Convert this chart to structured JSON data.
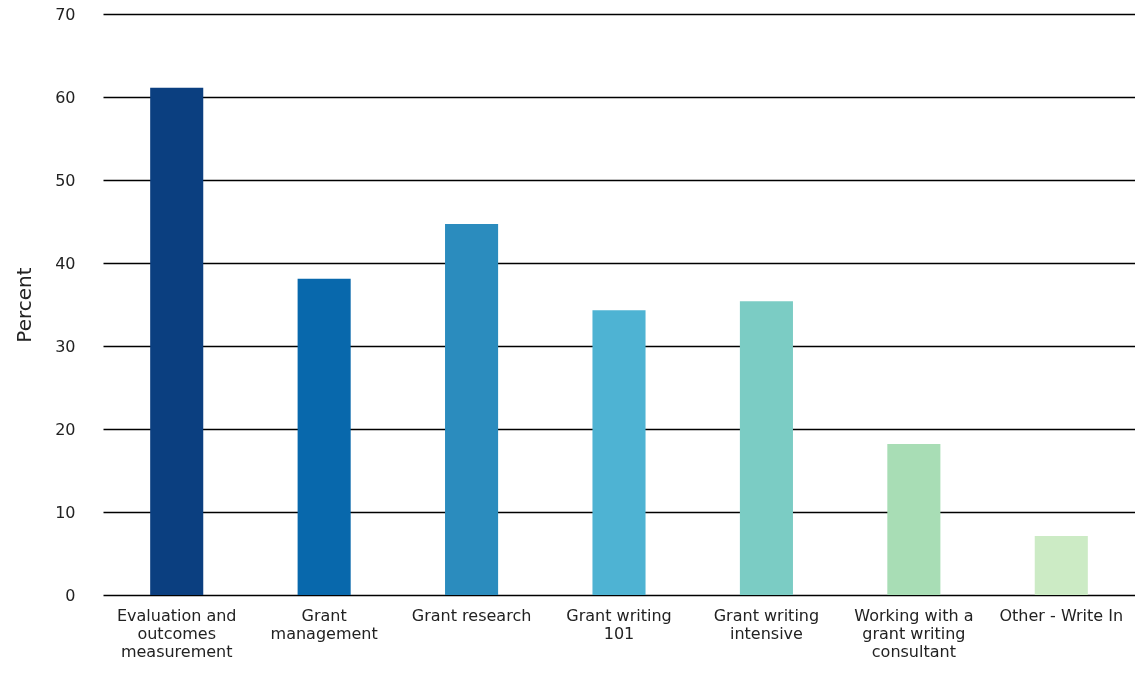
{
  "chart_data": {
    "type": "bar",
    "ylabel": "Percent",
    "categories": [
      "Evaluation and outcomes measurement",
      "Grant management",
      "Grant research",
      "Grant writing 101",
      "Grant writing intensive",
      "Working with a grant writing consultant",
      "Other - Write In"
    ],
    "values": [
      61.1,
      38.1,
      44.7,
      34.3,
      35.4,
      18.2,
      7.1
    ],
    "colors": [
      "#0b3f80",
      "#0868ac",
      "#2b8cbe",
      "#4eb3d3",
      "#7bccc4",
      "#a8ddb5",
      "#ccebc5"
    ],
    "ylim": [
      0,
      70
    ],
    "yticks": [
      0,
      10,
      20,
      30,
      40,
      50,
      60,
      70
    ],
    "grid": "y"
  }
}
